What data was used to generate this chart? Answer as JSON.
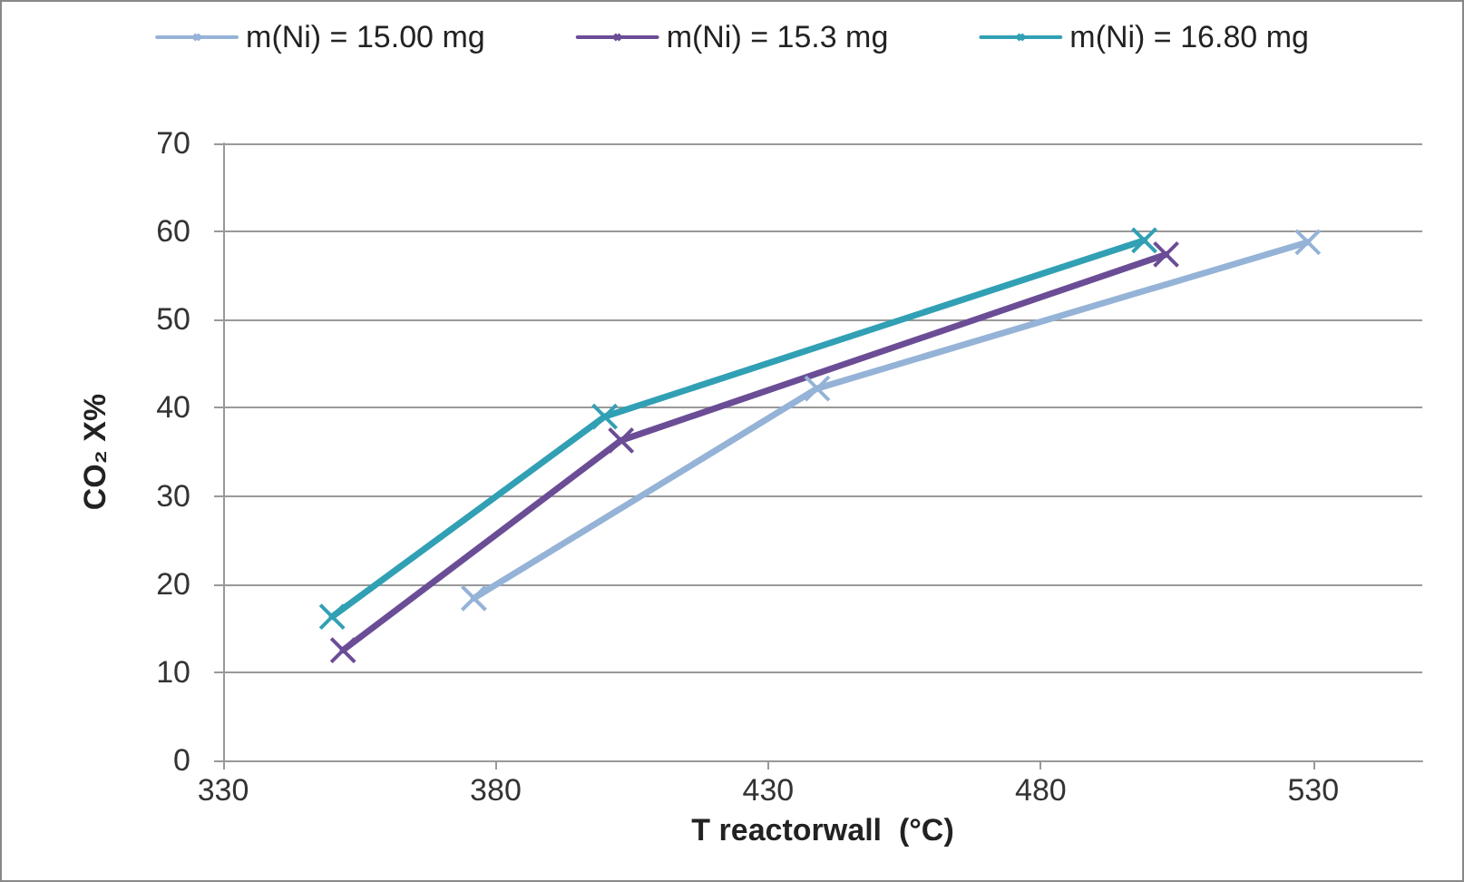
{
  "chart_data": {
    "type": "line",
    "xlabel": "T reactorwall  (°C)",
    "ylabel": "CO₂ X%",
    "series": [
      {
        "name": "m(Ni) = 15.00 mg",
        "color": "#95b3d7",
        "marker": "cross",
        "x": [
          376,
          439,
          529
        ],
        "values": [
          18.4,
          42.2,
          58.8
        ]
      },
      {
        "name": "m(Ni) = 15.3 mg",
        "color": "#6b4d96",
        "marker": "cross",
        "x": [
          352,
          403,
          503
        ],
        "values": [
          12.5,
          36.3,
          57.4
        ]
      },
      {
        "name": "m(Ni) = 16.80 mg",
        "color": "#31a0b4",
        "marker": "cross",
        "x": [
          350,
          400,
          499
        ],
        "values": [
          16.3,
          39,
          59
        ]
      }
    ],
    "xlim": [
      330,
      550
    ],
    "xticks": [
      330,
      380,
      430,
      480,
      530
    ],
    "ylim": [
      0,
      70
    ],
    "yticks": [
      0,
      10,
      20,
      30,
      40,
      50,
      60,
      70
    ],
    "grid": "y",
    "legend": "top",
    "line_style": "solid"
  }
}
